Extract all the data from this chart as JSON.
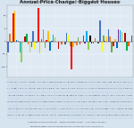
{
  "title": "Annual Price Change: Biggest Houses",
  "subtitle": "Sales through MLS Systems Only: Excluding New Construction",
  "background_color": "#d6e4f0",
  "plot_bg_color": "#d6e4f0",
  "grid_color": "#ffffff",
  "footer_bg": "#c2d4e8",
  "title_color": "#333333",
  "subtitle_color": "#555555",
  "ylim": [
    -14,
    14
  ],
  "yticks": [
    -10,
    -5,
    0,
    5,
    10
  ],
  "n_bars": 75,
  "color_pool": [
    "#4472c4",
    "#ed7d31",
    "#70ad47",
    "#ff0000",
    "#ffc000",
    "#0070c0",
    "#7030a0",
    "#00b0f0",
    "#92d050",
    "#000000",
    "#c00000",
    "#00b050",
    "#ff6600",
    "#a9d18e",
    "#595959",
    "#4472c4",
    "#ffff00",
    "#70ad47",
    "#ff0000",
    "#ffc000"
  ],
  "spike_indices": [
    4,
    18,
    38,
    55
  ],
  "spike_values": [
    12,
    14,
    -12,
    9
  ],
  "title_fontsize": 3.8,
  "subtitle_fontsize": 2.6
}
